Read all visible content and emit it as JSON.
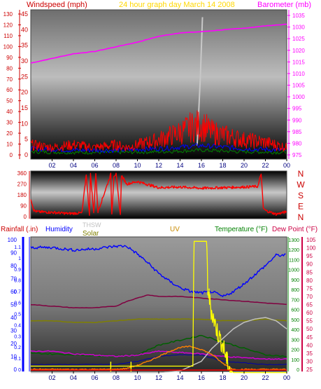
{
  "header": {
    "left_label": "Windspeed (mph)",
    "center_label": "24 hour graph day   March 14 2008",
    "right_label": "Barometer (mb)"
  },
  "colors": {
    "wind": "#ff0000",
    "wind_low": "#0000ff",
    "wind_low2": "#008000",
    "barometer": "#ff00ff",
    "solar_grey": "#c8c8c8",
    "humidity": "#0000ff",
    "rain": "#0000ff",
    "uv": "#ffff00",
    "solar": "#808000",
    "thsw": "#c0c0c0",
    "temperature": "#008000",
    "dewpoint": "#800040",
    "axis_red": "#cc0000",
    "axis_magenta": "#ff00ff",
    "axis_green": "#008000",
    "axis_blue": "#0000ff"
  },
  "chart_data": [
    {
      "type": "line",
      "title": "24 hour graph day   March 14 2008",
      "x_ticks": [
        "02",
        "04",
        "06",
        "08",
        "10",
        "12",
        "14",
        "16",
        "18",
        "20",
        "22",
        "00"
      ],
      "left_axis": {
        "label": "Windspeed (mph)",
        "range": [
          0,
          45
        ],
        "ticks": [
          0,
          5,
          10,
          15,
          20,
          25,
          30,
          35,
          40,
          45
        ]
      },
      "left_axis_outer": {
        "range": [
          0,
          130
        ],
        "ticks": [
          0,
          10,
          20,
          30,
          40,
          50,
          60,
          70,
          80,
          90,
          100,
          110,
          120,
          130
        ]
      },
      "right_axis": {
        "label": "Barometer (mb)",
        "range": [
          975,
          1035
        ],
        "ticks": [
          975,
          980,
          985,
          990,
          995,
          1000,
          1005,
          1010,
          1015,
          1020,
          1025,
          1030,
          1035
        ]
      },
      "series": [
        {
          "name": "Barometer",
          "axis": "right",
          "x": [
            0,
            2,
            4,
            6,
            8,
            10,
            12,
            14,
            16,
            18,
            20,
            22,
            24
          ],
          "y": [
            1014.5,
            1016.5,
            1018.5,
            1019.5,
            1021.5,
            1023.5,
            1026,
            1027.5,
            1028,
            1028.8,
            1029.5,
            1030.5,
            1031.2
          ]
        },
        {
          "name": "Wind gust",
          "axis": "left",
          "x": [
            0,
            2,
            4,
            6,
            8,
            9,
            10,
            12,
            14,
            15,
            16,
            17,
            18,
            20,
            22,
            24
          ],
          "y": [
            4,
            3,
            4,
            3,
            4,
            3,
            4,
            6,
            9,
            11,
            12,
            9,
            8,
            6,
            5,
            3
          ]
        },
        {
          "name": "Wind avg",
          "axis": "left",
          "x": [
            0,
            4,
            8,
            12,
            16,
            20,
            24
          ],
          "y": [
            2,
            1.5,
            1.5,
            2,
            3,
            2,
            1.5
          ]
        },
        {
          "name": "Wind low",
          "axis": "left",
          "x": [
            0,
            4,
            8,
            12,
            16,
            20,
            24
          ],
          "y": [
            1,
            0.8,
            0.8,
            1,
            1.5,
            1,
            0.8
          ]
        },
        {
          "name": "Solar beam",
          "axis": "left",
          "x": [
            15.6,
            15.9,
            16.1
          ],
          "y": [
            3,
            25,
            44
          ]
        }
      ]
    },
    {
      "type": "line",
      "right_labels": [
        "N",
        "W",
        "S",
        "E",
        "N"
      ],
      "left_axis": {
        "range": [
          0,
          360
        ],
        "ticks": [
          0,
          90,
          180,
          270,
          360
        ]
      },
      "series": [
        {
          "name": "Wind direction",
          "x": [
            0,
            0.3,
            0.6,
            2,
            3.5,
            4.8,
            5.2,
            5.5,
            5.6,
            5.9,
            6.1,
            6.3,
            7.5,
            7.6,
            7.8,
            8.0,
            8.4,
            8.5,
            9.0,
            10,
            12,
            14,
            16,
            18,
            20,
            21.3,
            21.6,
            21.8,
            22,
            23,
            24
          ],
          "y": [
            150,
            50,
            40,
            35,
            25,
            30,
            350,
            20,
            350,
            30,
            360,
            40,
            350,
            20,
            340,
            350,
            10,
            340,
            270,
            290,
            240,
            245,
            235,
            240,
            245,
            250,
            360,
            70,
            50,
            20,
            40
          ]
        }
      ]
    },
    {
      "type": "line",
      "top_labels": [
        "Rainfall (.in)",
        "Humidity",
        "THSW",
        "Solar",
        "UV",
        "Temperature (°F)",
        "Dew Point (°F)"
      ],
      "x_ticks": [
        "02",
        "04",
        "06",
        "08",
        "10",
        "12",
        "14",
        "16",
        "18",
        "20",
        "22",
        "00"
      ],
      "rain_axis": {
        "range": [
          0,
          1.1
        ],
        "ticks": [
          0,
          0.05,
          0.1,
          0.15,
          0.2,
          0.25,
          0.3,
          0.35,
          0.4,
          0.45,
          0.5,
          0.55,
          0.6,
          0.65,
          0.7,
          0.75,
          0.8,
          0.85,
          0.9,
          0.95,
          1,
          1.05,
          1.1
        ]
      },
      "humidity_axis": {
        "range": [
          0,
          100
        ],
        "ticks": [
          0,
          10,
          20,
          30,
          40,
          50,
          60,
          70,
          80,
          90,
          100
        ]
      },
      "solar_axis": {
        "range": [
          0,
          1300
        ],
        "ticks": [
          0,
          100,
          200,
          300,
          400,
          500,
          600,
          700,
          800,
          900,
          1000,
          1100,
          1200,
          1300
        ]
      },
      "temp_axis": {
        "range": [
          25,
          105
        ],
        "ticks": [
          25,
          30,
          35,
          40,
          45,
          50,
          55,
          60,
          65,
          70,
          75,
          80,
          85,
          90,
          95,
          100,
          105
        ]
      },
      "series": [
        {
          "name": "Humidity",
          "axis": "humidity",
          "x": [
            0,
            2,
            4,
            6,
            8,
            9,
            10,
            11,
            12,
            13,
            14,
            15,
            16,
            17,
            18,
            19,
            20,
            21,
            22,
            23,
            24
          ],
          "y": [
            94,
            94,
            92,
            93,
            95,
            95,
            89,
            82,
            74,
            68,
            63,
            60,
            59,
            60,
            56,
            60,
            66,
            73,
            80,
            88,
            88
          ]
        },
        {
          "name": "Dew Point",
          "axis": "temp",
          "x": [
            0,
            2,
            4,
            6,
            8,
            9,
            10,
            11,
            12,
            14,
            16,
            18,
            20,
            22,
            24
          ],
          "y": [
            65,
            64,
            63,
            63,
            64,
            67,
            69,
            71,
            70,
            70,
            69,
            68,
            67,
            66,
            65
          ]
        },
        {
          "name": "Temperature",
          "axis": "temp",
          "x": [
            0,
            2,
            4,
            6,
            8,
            10,
            12,
            14,
            16,
            18,
            20,
            22,
            24
          ],
          "y": [
            55,
            55,
            54,
            54,
            55,
            56,
            56,
            56,
            56,
            55,
            55,
            56,
            55
          ]
        },
        {
          "name": "Temperature high",
          "axis": "temp",
          "x": [
            0,
            4,
            8,
            10,
            12,
            14,
            16,
            18,
            20,
            22,
            24
          ],
          "y": [
            35,
            34,
            33,
            34,
            40,
            43,
            46,
            42,
            38,
            34,
            33
          ]
        },
        {
          "name": "Rainfall",
          "axis": "humidity",
          "x": [
            0,
            2,
            4,
            6,
            8,
            10,
            12,
            14,
            16,
            18,
            20,
            22,
            24
          ],
          "y": [
            14,
            14,
            12,
            11,
            10,
            11,
            14,
            13,
            12,
            10,
            9,
            8,
            8
          ]
        },
        {
          "name": "THSW",
          "axis": "temp",
          "x": [
            0,
            2,
            4,
            6,
            8,
            10,
            12,
            14,
            16,
            17,
            18,
            19,
            20,
            21,
            22,
            23,
            24
          ],
          "y": [
            23,
            23,
            23,
            23,
            23,
            23,
            23,
            24,
            30,
            38,
            44,
            50,
            54,
            56,
            57,
            55,
            50
          ]
        },
        {
          "name": "Solar",
          "axis": "solar",
          "x": [
            0,
            8,
            9,
            10,
            11,
            12,
            13,
            14,
            15,
            16,
            17,
            18,
            19,
            24
          ],
          "y": [
            0,
            0,
            10,
            40,
            80,
            130,
            180,
            220,
            230,
            200,
            150,
            60,
            0,
            0
          ]
        },
        {
          "name": "UV",
          "axis": "temp",
          "x": [
            0,
            15.2,
            15.3,
            16.5,
            16.6,
            16.9,
            17.2,
            17.5,
            17.8,
            18.1,
            18.4,
            18.7,
            19,
            24
          ],
          "y": [
            27,
            27,
            104,
            104,
            75,
            62,
            55,
            48,
            43,
            38,
            30,
            25,
            23,
            23
          ]
        },
        {
          "name": "Wind chill",
          "axis": "temp",
          "x": [
            0,
            4,
            8,
            10,
            12,
            14,
            16,
            18,
            20,
            22,
            24
          ],
          "y": [
            28,
            28,
            28,
            30,
            33,
            34,
            34,
            30,
            29,
            28,
            28
          ]
        }
      ]
    }
  ]
}
